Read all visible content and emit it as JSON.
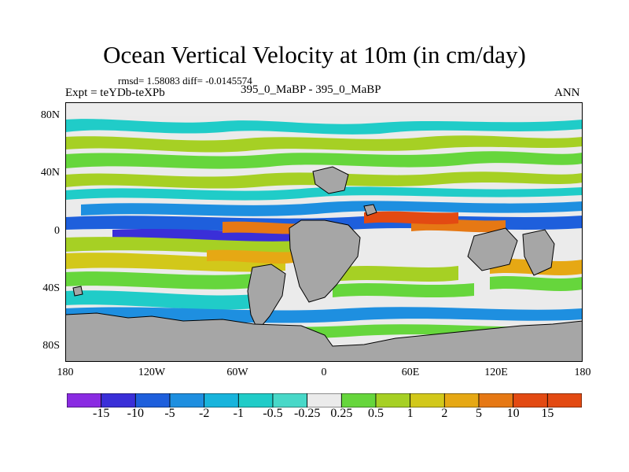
{
  "title": "Ocean Vertical Velocity at 10m (in cm/day)",
  "stats": "rmsd= 1.58083  diff= -0.0145574",
  "expt": "Expt = teYDb-teXPb",
  "center_label": "395_0_MaBP - 395_0_MaBP",
  "season": "ANN",
  "y_ticks": [
    "80N",
    "40N",
    "0",
    "40S",
    "80S"
  ],
  "x_ticks": [
    "180",
    "120W",
    "60W",
    "0",
    "60E",
    "120E",
    "180"
  ],
  "colorbar": {
    "labels": [
      "-15",
      "-10",
      "-5",
      "-2",
      "-1",
      "-0.5",
      "-0.25",
      "0.25",
      "0.5",
      "1",
      "2",
      "5",
      "10",
      "15"
    ],
    "colors": [
      "#8a2be2",
      "#3a2fd8",
      "#1e5fdc",
      "#1e8fe0",
      "#18b4dc",
      "#20ccc8",
      "#48d8c8",
      "#ebebeb",
      "#66d63c",
      "#a6d024",
      "#d2c81a",
      "#e6a814",
      "#e67814",
      "#e34a12"
    ]
  },
  "land_color": "#a6a6a6",
  "ocean_background": "#ebebeb"
}
